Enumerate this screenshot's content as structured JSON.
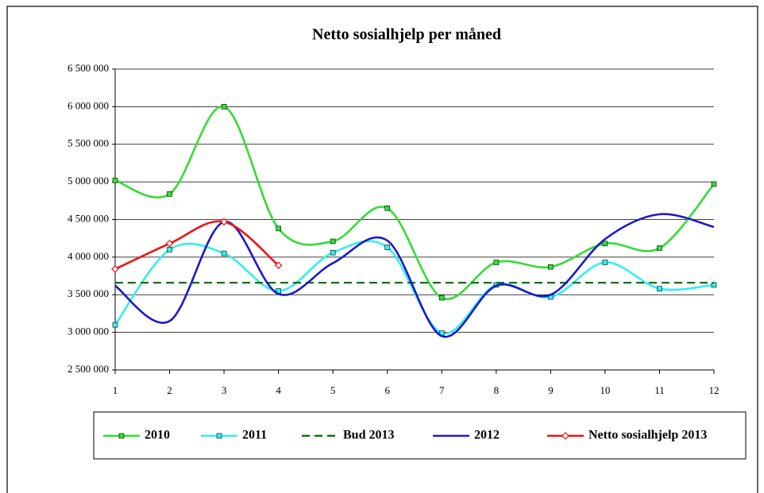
{
  "chart_data": {
    "type": "line",
    "title": "Netto sosialhjelp per måned",
    "x": [
      1,
      2,
      3,
      4,
      5,
      6,
      7,
      8,
      9,
      10,
      11,
      12
    ],
    "xlim": [
      1,
      12
    ],
    "xticks": [
      1,
      2,
      3,
      4,
      5,
      6,
      7,
      8,
      9,
      10,
      11,
      12
    ],
    "ylim": [
      2500000,
      6500000
    ],
    "yticks": [
      {
        "value": 2500000,
        "label": "2 500 000"
      },
      {
        "value": 3000000,
        "label": "3 000 000"
      },
      {
        "value": 3500000,
        "label": "3 500 000"
      },
      {
        "value": 4000000,
        "label": "4 000 000"
      },
      {
        "value": 4500000,
        "label": "4 500 000"
      },
      {
        "value": 5000000,
        "label": "5 000 000"
      },
      {
        "value": 5500000,
        "label": "5 500 000"
      },
      {
        "value": 6000000,
        "label": "6 000 000"
      },
      {
        "value": 6500000,
        "label": "6 500 000"
      }
    ],
    "grid": true,
    "smooth": true,
    "legend": "bottom",
    "series": [
      {
        "name": "2010",
        "color": "#33dd33",
        "marker": "square",
        "values": [
          5020000,
          4840000,
          6000000,
          4380000,
          4210000,
          4650000,
          3460000,
          3930000,
          3870000,
          4180000,
          4120000,
          4970000
        ]
      },
      {
        "name": "2011",
        "color": "#33eeee",
        "marker": "square",
        "values": [
          3100000,
          4100000,
          4050000,
          3550000,
          4060000,
          4130000,
          2990000,
          3630000,
          3470000,
          3930000,
          3580000,
          3630000
        ]
      },
      {
        "name": "Bud 2013",
        "color": "#107010",
        "dash": true,
        "values": [
          3660000,
          3660000,
          3660000,
          3660000,
          3660000,
          3660000,
          3660000,
          3660000,
          3660000,
          3660000,
          3660000,
          3660000
        ]
      },
      {
        "name": "2012",
        "color": "#1a1acc",
        "values": [
          3620000,
          3150000,
          4470000,
          3510000,
          3920000,
          4220000,
          2950000,
          3620000,
          3500000,
          4240000,
          4570000,
          4400000
        ]
      },
      {
        "name": "Netto sosialhjelp 2013",
        "color": "#ee1111",
        "marker": "diamond",
        "values": [
          3840000,
          4180000,
          4470000,
          3890000,
          null,
          null,
          null,
          null,
          null,
          null,
          null,
          null
        ]
      }
    ]
  }
}
